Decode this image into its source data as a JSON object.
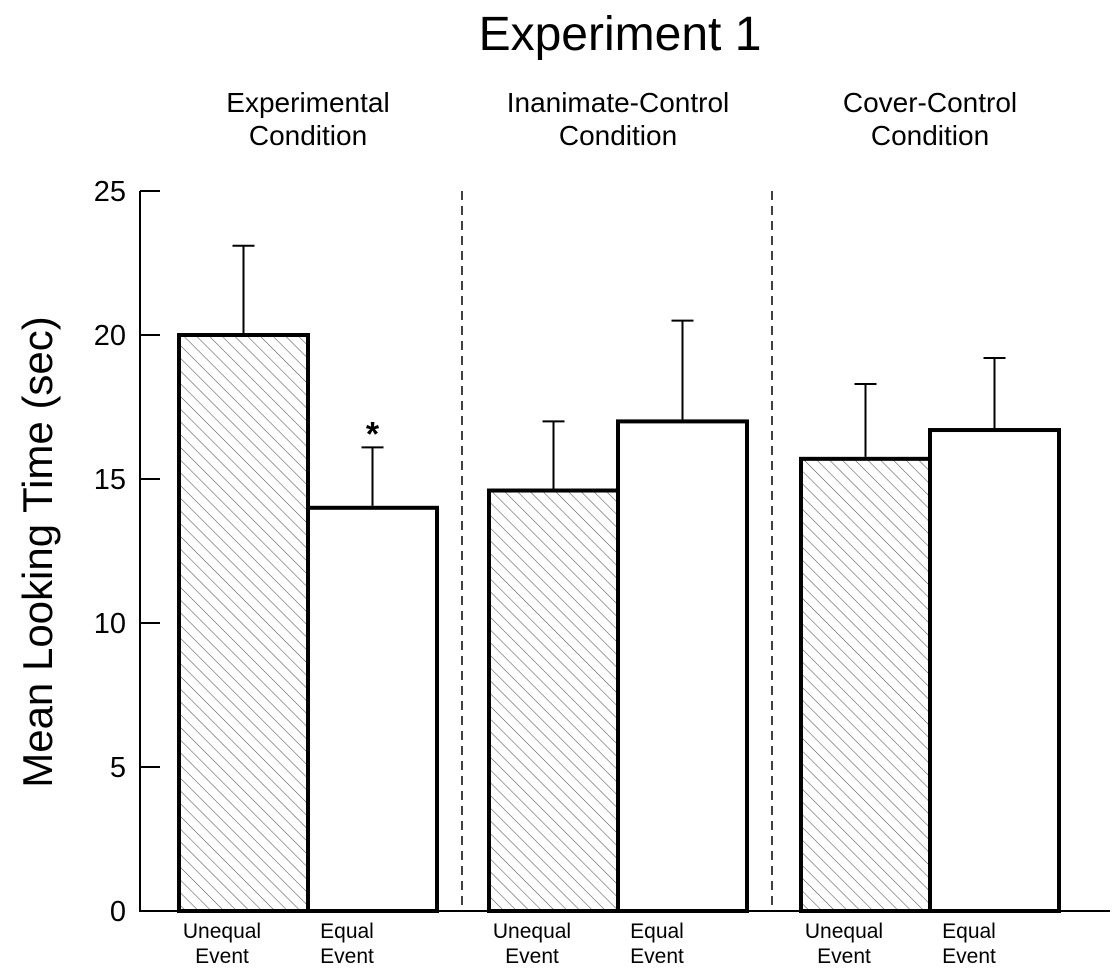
{
  "chart_data": {
    "type": "bar",
    "title": "Experiment 1",
    "ylabel": "Mean Looking Time (sec)",
    "xlabel": "",
    "ylim": [
      0,
      25
    ],
    "yticks": [
      "0",
      "5",
      "10",
      "15",
      "20",
      "25"
    ],
    "grid": false,
    "groups": [
      {
        "label_lines": [
          "Experimental",
          "Condition"
        ],
        "bars": [
          {
            "category_lines": [
              "Unequal",
              "Event"
            ],
            "value": 20.0,
            "error": 3.1,
            "pattern": "hatched",
            "marker": ""
          },
          {
            "category_lines": [
              "Equal",
              "Event"
            ],
            "value": 14.0,
            "error": 2.1,
            "pattern": "open",
            "marker": "*"
          }
        ]
      },
      {
        "label_lines": [
          "Inanimate-Control",
          "Condition"
        ],
        "bars": [
          {
            "category_lines": [
              "Unequal",
              "Event"
            ],
            "value": 14.6,
            "error": 2.4,
            "pattern": "hatched",
            "marker": ""
          },
          {
            "category_lines": [
              "Equal",
              "Event"
            ],
            "value": 17.0,
            "error": 3.5,
            "pattern": "open",
            "marker": ""
          }
        ]
      },
      {
        "label_lines": [
          "Cover-Control",
          "Condition"
        ],
        "bars": [
          {
            "category_lines": [
              "Unequal",
              "Event"
            ],
            "value": 15.7,
            "error": 2.6,
            "pattern": "hatched",
            "marker": ""
          },
          {
            "category_lines": [
              "Equal",
              "Event"
            ],
            "value": 16.7,
            "error": 2.5,
            "pattern": "open",
            "marker": ""
          }
        ]
      }
    ]
  },
  "colors": {
    "ink": "#000000",
    "background": "#ffffff",
    "hatch_line": "#555555"
  }
}
